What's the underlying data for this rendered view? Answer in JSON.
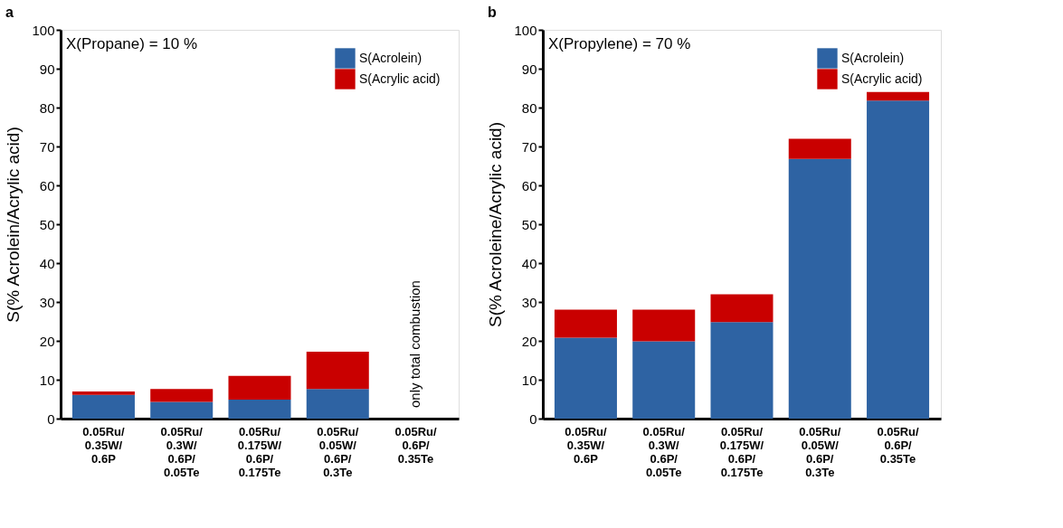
{
  "chart_data": [
    {
      "type": "bar",
      "title": "a",
      "ylabel": "S(% Acrolein/Acrylic acid)",
      "stacked": true,
      "legend": "top right",
      "grid": false,
      "categories": [
        "0.05Ru/\n0.35W/\n0.6P",
        "0.05Ru/\n0.3W/\n0.6P/\n0.05Te",
        "0.05Ru/\n0.175W/\n0.6P/\n0.175Te",
        "0.05Ru/\n0.05W/\n0.6P/\n0.3Te",
        "0.05Ru/\n0.6P/\n0.35Te"
      ],
      "series": [
        {
          "name": "S(Acrolein)",
          "color": "#2e63a3",
          "values": [
            6.1,
            4.3,
            4.9,
            7.6,
            null
          ]
        },
        {
          "name": "S(Acrylic acid)",
          "color": "#c90000",
          "values": [
            0.9,
            3.3,
            6.1,
            9.6,
            null
          ]
        }
      ],
      "ylim": [
        0,
        100
      ],
      "yticks": [
        0,
        10,
        20,
        30,
        40,
        50,
        60,
        70,
        80,
        90,
        100
      ],
      "annotations": [
        "X(Propane) = 10 %",
        "only total combustion"
      ]
    },
    {
      "type": "bar",
      "title": "b",
      "ylabel": "S(% Acroleine/Acrylic acid)",
      "stacked": true,
      "legend": "top right",
      "grid": false,
      "categories": [
        "0.05Ru/\n0.35W/\n0.6P",
        "0.05Ru/\n0.3W/\n0.6P/\n0.05Te",
        "0.05Ru/\n0.175W/\n0.6P/\n0.175Te",
        "0.05Ru/\n0.05W/\n0.6P/\n0.3Te",
        "0.05Ru/\n0.6P/\n0.35Te"
      ],
      "series": [
        {
          "name": "S(Acrolein)",
          "color": "#2e63a3",
          "values": [
            20.8,
            19.9,
            24.8,
            66.8,
            81.8
          ]
        },
        {
          "name": "S(Acrylic acid)",
          "color": "#c90000",
          "values": [
            7.2,
            8.1,
            7.2,
            5.2,
            2.2
          ]
        }
      ],
      "ylim": [
        0,
        100
      ],
      "yticks": [
        0,
        10,
        20,
        30,
        40,
        50,
        60,
        70,
        80,
        90,
        100
      ],
      "annotations": [
        "X(Propylene) = 70 %"
      ]
    }
  ]
}
